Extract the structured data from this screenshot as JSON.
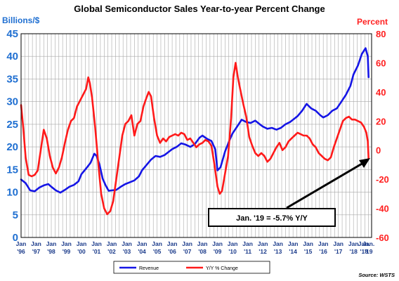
{
  "chart_data": {
    "type": "line",
    "title": "Global Semiconductor Sales Year-to-year Percent Change",
    "ylabel_left": "Billions/$",
    "ylabel_right": "Percent",
    "ylim_left": [
      0,
      45
    ],
    "ylim_right": [
      -60,
      80
    ],
    "yticks_left": [
      "45",
      "40",
      "35",
      "30",
      "25",
      "20",
      "15",
      "10",
      "5",
      "0"
    ],
    "yticks_right": [
      "80",
      "60",
      "40",
      "20",
      "0",
      "-20",
      "-40",
      "-60"
    ],
    "xticks": [
      {
        "month": "Jan",
        "year": "'96",
        "t": 1996.0
      },
      {
        "month": "Jan",
        "year": "'97",
        "t": 1997.0
      },
      {
        "month": "Jan",
        "year": "'98",
        "t": 1998.0
      },
      {
        "month": "Jan",
        "year": "'99",
        "t": 1999.0
      },
      {
        "month": "Jan",
        "year": "'00",
        "t": 2000.0
      },
      {
        "month": "Jan",
        "year": "'01",
        "t": 2001.0
      },
      {
        "month": "Jan",
        "year": "'02",
        "t": 2002.0
      },
      {
        "month": "Jan",
        "year": "'03",
        "t": 2003.0
      },
      {
        "month": "Jan",
        "year": "'04",
        "t": 2004.0
      },
      {
        "month": "Jan",
        "year": "'05",
        "t": 2005.0
      },
      {
        "month": "Jan",
        "year": "'06",
        "t": 2006.0
      },
      {
        "month": "Jan",
        "year": "'07",
        "t": 2007.0
      },
      {
        "month": "Jan",
        "year": "'08",
        "t": 2008.0
      },
      {
        "month": "Jan",
        "year": "'09",
        "t": 2009.0
      },
      {
        "month": "Jan",
        "year": "'10",
        "t": 2010.0
      },
      {
        "month": "Jan",
        "year": "'11",
        "t": 2011.0
      },
      {
        "month": "Jan",
        "year": "'12",
        "t": 2012.0
      },
      {
        "month": "Jan",
        "year": "'13",
        "t": 2013.0
      },
      {
        "month": "Jan",
        "year": "'14",
        "t": 2014.0
      },
      {
        "month": "Jan",
        "year": "'15",
        "t": 2015.0
      },
      {
        "month": "Jan",
        "year": "'16",
        "t": 2016.0
      },
      {
        "month": "Jan",
        "year": "'17",
        "t": 2017.0
      },
      {
        "month": "Jan",
        "year": "'18",
        "t": 2018.0
      },
      {
        "month": "Jan.",
        "year": "'18",
        "t": 2018.7
      },
      {
        "month": "Jan.",
        "year": "'19",
        "t": 2019.0
      }
    ],
    "xlim": [
      1996.0,
      2019.2
    ],
    "grid": true,
    "series": [
      {
        "name": "Revenue",
        "axis": "left",
        "color": "#1515e6",
        "points": [
          [
            1996.0,
            12.8
          ],
          [
            1996.3,
            12.0
          ],
          [
            1996.6,
            10.4
          ],
          [
            1996.9,
            10.2
          ],
          [
            1997.2,
            11.0
          ],
          [
            1997.5,
            11.5
          ],
          [
            1997.8,
            11.8
          ],
          [
            1998.0,
            11.2
          ],
          [
            1998.3,
            10.4
          ],
          [
            1998.6,
            9.9
          ],
          [
            1998.9,
            10.5
          ],
          [
            1999.2,
            11.2
          ],
          [
            1999.5,
            11.6
          ],
          [
            1999.8,
            12.4
          ],
          [
            2000.0,
            14.0
          ],
          [
            2000.3,
            15.2
          ],
          [
            2000.6,
            16.5
          ],
          [
            2000.85,
            18.5
          ],
          [
            2001.0,
            18.0
          ],
          [
            2001.2,
            16.0
          ],
          [
            2001.4,
            13.0
          ],
          [
            2001.6,
            11.5
          ],
          [
            2001.8,
            10.3
          ],
          [
            2002.0,
            10.4
          ],
          [
            2002.3,
            10.5
          ],
          [
            2002.6,
            11.2
          ],
          [
            2002.9,
            11.8
          ],
          [
            2003.2,
            12.2
          ],
          [
            2003.5,
            12.6
          ],
          [
            2003.8,
            13.5
          ],
          [
            2004.0,
            14.8
          ],
          [
            2004.3,
            16.0
          ],
          [
            2004.6,
            17.2
          ],
          [
            2004.9,
            18.0
          ],
          [
            2005.2,
            17.8
          ],
          [
            2005.5,
            18.2
          ],
          [
            2005.8,
            19.0
          ],
          [
            2006.0,
            19.5
          ],
          [
            2006.3,
            20.0
          ],
          [
            2006.6,
            20.8
          ],
          [
            2006.9,
            20.5
          ],
          [
            2007.2,
            20.0
          ],
          [
            2007.5,
            20.6
          ],
          [
            2007.8,
            22.0
          ],
          [
            2008.0,
            22.5
          ],
          [
            2008.3,
            21.8
          ],
          [
            2008.6,
            21.3
          ],
          [
            2008.85,
            19.5
          ],
          [
            2009.0,
            14.8
          ],
          [
            2009.2,
            15.5
          ],
          [
            2009.5,
            19.0
          ],
          [
            2009.8,
            21.5
          ],
          [
            2010.0,
            23.0
          ],
          [
            2010.3,
            24.5
          ],
          [
            2010.6,
            26.0
          ],
          [
            2010.9,
            25.5
          ],
          [
            2011.2,
            25.3
          ],
          [
            2011.5,
            25.8
          ],
          [
            2011.8,
            25.0
          ],
          [
            2012.0,
            24.5
          ],
          [
            2012.3,
            24.0
          ],
          [
            2012.6,
            24.2
          ],
          [
            2012.9,
            23.8
          ],
          [
            2013.2,
            24.2
          ],
          [
            2013.5,
            25.0
          ],
          [
            2013.8,
            25.5
          ],
          [
            2014.0,
            26.0
          ],
          [
            2014.3,
            26.8
          ],
          [
            2014.6,
            28.0
          ],
          [
            2014.9,
            29.5
          ],
          [
            2015.2,
            28.5
          ],
          [
            2015.5,
            28.0
          ],
          [
            2015.8,
            27.0
          ],
          [
            2016.0,
            26.5
          ],
          [
            2016.3,
            27.0
          ],
          [
            2016.6,
            28.0
          ],
          [
            2016.9,
            28.5
          ],
          [
            2017.2,
            30.0
          ],
          [
            2017.5,
            31.5
          ],
          [
            2017.8,
            33.5
          ],
          [
            2018.0,
            36.0
          ],
          [
            2018.3,
            38.0
          ],
          [
            2018.55,
            40.5
          ],
          [
            2018.8,
            41.8
          ],
          [
            2018.95,
            40.0
          ],
          [
            2019.0,
            35.4
          ]
        ]
      },
      {
        "name": "Y/Y % Change",
        "axis": "right",
        "color": "#ff1a1a",
        "points": [
          [
            1996.0,
            31.0
          ],
          [
            1996.15,
            15.0
          ],
          [
            1996.3,
            -5.0
          ],
          [
            1996.5,
            -17.0
          ],
          [
            1996.7,
            -18.0
          ],
          [
            1996.9,
            -17.0
          ],
          [
            1997.1,
            -14.0
          ],
          [
            1997.3,
            0.0
          ],
          [
            1997.5,
            14.0
          ],
          [
            1997.7,
            8.0
          ],
          [
            1997.9,
            -4.0
          ],
          [
            1998.1,
            -12.0
          ],
          [
            1998.3,
            -16.0
          ],
          [
            1998.5,
            -12.0
          ],
          [
            1998.7,
            -5.0
          ],
          [
            1998.9,
            5.0
          ],
          [
            1999.1,
            14.0
          ],
          [
            1999.3,
            20.0
          ],
          [
            1999.5,
            22.0
          ],
          [
            1999.7,
            30.0
          ],
          [
            1999.9,
            34.0
          ],
          [
            2000.1,
            38.0
          ],
          [
            2000.3,
            42.0
          ],
          [
            2000.45,
            50.0
          ],
          [
            2000.55,
            46.0
          ],
          [
            2000.7,
            36.0
          ],
          [
            2000.9,
            16.0
          ],
          [
            2001.1,
            -8.0
          ],
          [
            2001.3,
            -30.0
          ],
          [
            2001.5,
            -40.0
          ],
          [
            2001.7,
            -44.0
          ],
          [
            2001.9,
            -42.0
          ],
          [
            2002.1,
            -35.0
          ],
          [
            2002.3,
            -20.0
          ],
          [
            2002.5,
            -5.0
          ],
          [
            2002.7,
            10.0
          ],
          [
            2002.9,
            18.0
          ],
          [
            2003.1,
            20.0
          ],
          [
            2003.3,
            24.0
          ],
          [
            2003.5,
            10.0
          ],
          [
            2003.7,
            18.0
          ],
          [
            2003.9,
            20.0
          ],
          [
            2004.1,
            30.0
          ],
          [
            2004.3,
            36.0
          ],
          [
            2004.45,
            40.0
          ],
          [
            2004.6,
            37.0
          ],
          [
            2004.8,
            22.0
          ],
          [
            2005.0,
            10.0
          ],
          [
            2005.2,
            5.0
          ],
          [
            2005.4,
            8.0
          ],
          [
            2005.6,
            6.0
          ],
          [
            2005.8,
            9.0
          ],
          [
            2006.0,
            10.0
          ],
          [
            2006.2,
            11.0
          ],
          [
            2006.4,
            10.0
          ],
          [
            2006.6,
            12.0
          ],
          [
            2006.8,
            11.0
          ],
          [
            2007.0,
            7.0
          ],
          [
            2007.2,
            8.0
          ],
          [
            2007.4,
            5.0
          ],
          [
            2007.6,
            2.0
          ],
          [
            2007.8,
            4.0
          ],
          [
            2008.0,
            5.0
          ],
          [
            2008.2,
            7.0
          ],
          [
            2008.4,
            6.0
          ],
          [
            2008.6,
            3.0
          ],
          [
            2008.8,
            -10.0
          ],
          [
            2009.0,
            -25.0
          ],
          [
            2009.15,
            -30.0
          ],
          [
            2009.3,
            -28.0
          ],
          [
            2009.5,
            -16.0
          ],
          [
            2009.7,
            -4.0
          ],
          [
            2009.9,
            22.0
          ],
          [
            2010.05,
            50.0
          ],
          [
            2010.2,
            60.0
          ],
          [
            2010.35,
            50.0
          ],
          [
            2010.5,
            42.0
          ],
          [
            2010.7,
            32.0
          ],
          [
            2010.9,
            23.0
          ],
          [
            2011.1,
            9.0
          ],
          [
            2011.3,
            3.0
          ],
          [
            2011.5,
            -2.0
          ],
          [
            2011.7,
            -4.0
          ],
          [
            2011.9,
            -2.0
          ],
          [
            2012.1,
            -4.0
          ],
          [
            2012.3,
            -8.0
          ],
          [
            2012.5,
            -6.0
          ],
          [
            2012.7,
            -2.0
          ],
          [
            2012.9,
            2.0
          ],
          [
            2013.1,
            5.0
          ],
          [
            2013.3,
            0.0
          ],
          [
            2013.5,
            2.0
          ],
          [
            2013.7,
            6.0
          ],
          [
            2013.9,
            8.0
          ],
          [
            2014.1,
            10.0
          ],
          [
            2014.3,
            12.0
          ],
          [
            2014.5,
            11.0
          ],
          [
            2014.7,
            10.0
          ],
          [
            2014.9,
            10.0
          ],
          [
            2015.1,
            8.0
          ],
          [
            2015.3,
            4.0
          ],
          [
            2015.5,
            2.0
          ],
          [
            2015.7,
            -2.0
          ],
          [
            2015.9,
            -4.0
          ],
          [
            2016.1,
            -6.0
          ],
          [
            2016.3,
            -7.0
          ],
          [
            2016.5,
            -5.0
          ],
          [
            2016.7,
            2.0
          ],
          [
            2016.9,
            8.0
          ],
          [
            2017.1,
            14.0
          ],
          [
            2017.3,
            20.0
          ],
          [
            2017.5,
            22.0
          ],
          [
            2017.7,
            23.0
          ],
          [
            2017.9,
            21.0
          ],
          [
            2018.1,
            21.0
          ],
          [
            2018.3,
            20.0
          ],
          [
            2018.5,
            19.0
          ],
          [
            2018.7,
            16.0
          ],
          [
            2018.85,
            12.0
          ],
          [
            2018.95,
            6.0
          ],
          [
            2019.0,
            -5.7
          ]
        ]
      }
    ],
    "legend": [
      "Revenue",
      "Y/Y % Change"
    ],
    "annotation": "Jan. '19 = -5.7% Y/Y",
    "source": "Source: WSTS"
  }
}
